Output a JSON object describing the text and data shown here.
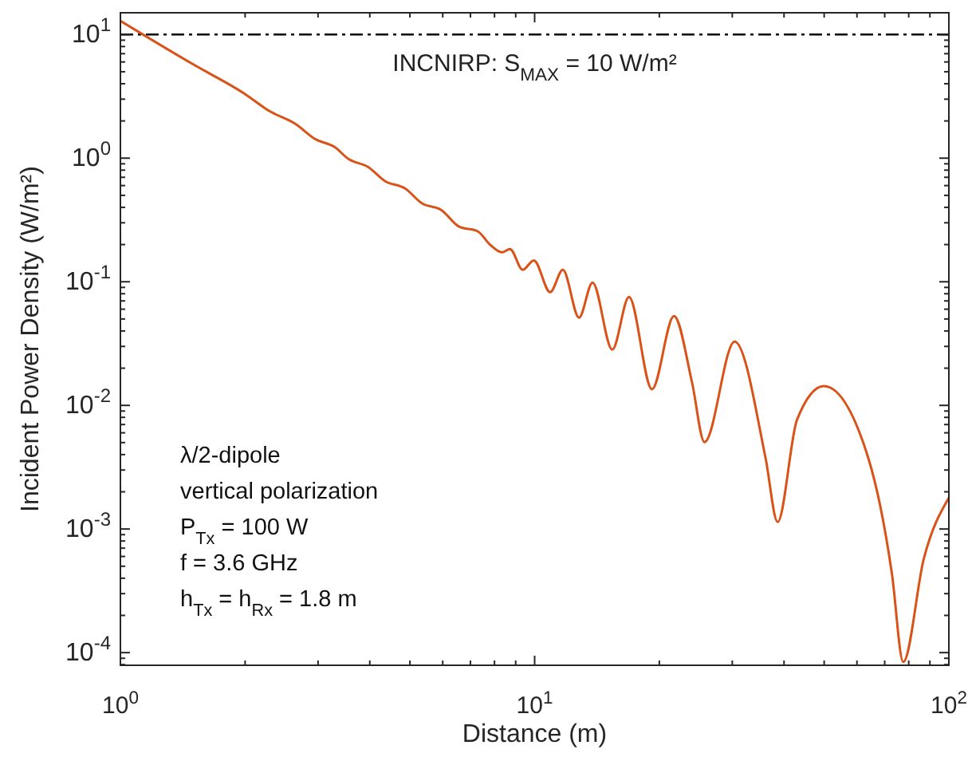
{
  "chart_data": {
    "type": "line",
    "xlabel": "Distance (m)",
    "ylabel": "Incident Power Density (W/m²)",
    "log": "xy",
    "xlim": [
      1,
      100
    ],
    "ylim": [
      7.9e-05,
      15
    ],
    "xticks": [
      {
        "value": 1,
        "label": "10$^{0}$"
      },
      {
        "value": 10,
        "label": "10$^{1}$"
      },
      {
        "value": 100,
        "label": "10$^{2}$"
      }
    ],
    "yticks": [
      {
        "value": 0.0001,
        "label": "10$^{-4}$"
      },
      {
        "value": 0.001,
        "label": "10$^{-3}$"
      },
      {
        "value": 0.01,
        "label": "10$^{-2}$"
      },
      {
        "value": 0.1,
        "label": "10$^{-1}$"
      },
      {
        "value": 1,
        "label": "10$^{0}$"
      },
      {
        "value": 10,
        "label": "10$^{1}$"
      }
    ],
    "grid": false,
    "line_style": "solid",
    "marker": "none",
    "series": [
      {
        "color": "#d95319",
        "x": [
          1,
          1.5,
          2,
          2.29,
          2.64,
          2.96,
          3.29,
          3.56,
          3.96,
          4.36,
          4.86,
          5.35,
          5.96,
          6.56,
          7.3,
          7.8,
          8.34,
          8.72,
          9.36,
          9.96,
          10.9,
          11.7,
          12.8,
          13.8,
          15.4,
          16.9,
          19.2,
          21.7,
          24,
          25.7,
          30.4,
          36.1,
          38.6,
          43,
          49.9,
          63.9,
          72.9,
          77.6,
          87,
          100
        ],
        "values": [
          12.9,
          5.73,
          3.3,
          2.4,
          1.9,
          1.42,
          1.23,
          0.98,
          0.85,
          0.65,
          0.57,
          0.43,
          0.38,
          0.28,
          0.255,
          0.2,
          0.173,
          0.184,
          0.125,
          0.149,
          0.0824,
          0.125,
          0.0513,
          0.0986,
          0.0283,
          0.0754,
          0.0135,
          0.0528,
          0.0152,
          0.00505,
          0.0328,
          0.00375,
          0.00114,
          0.00766,
          0.0143,
          0.00375,
          0.00043,
          8.4e-05,
          0.000575,
          0.00179
        ]
      }
    ],
    "ref_lines": [
      {
        "axis": "y",
        "value": 10,
        "label": "INCNIRP: S$_{MAX}$ = 10 W/m²",
        "color": "#000000",
        "line_style": "dashdot"
      }
    ],
    "annotations": [
      "λ/2-dipole",
      "vertical polarization",
      "P$_{Tx}$ = 100 W",
      "f = 3.6 GHz",
      "h$_{Tx}$ = h$_{Rx}$ = 1.8 m"
    ]
  }
}
